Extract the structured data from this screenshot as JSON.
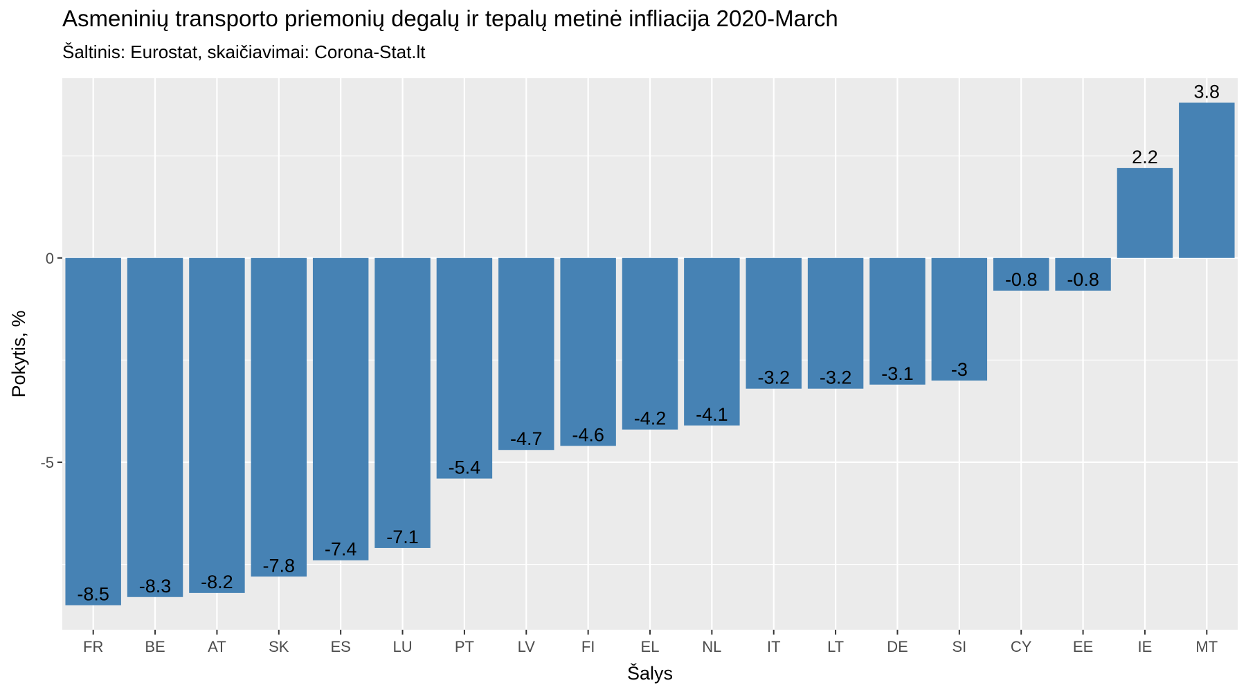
{
  "chart_data": {
    "type": "bar",
    "title": "Asmeninių transporto priemonių degalų ir tepalų metinė infliacija 2020-March",
    "subtitle": "Šaltinis: Eurostat, skaičiavimai: Corona-Stat.lt",
    "xlabel": "Šalys",
    "ylabel": "Pokytis, %",
    "categories": [
      "FR",
      "BE",
      "AT",
      "SK",
      "ES",
      "LU",
      "PT",
      "LV",
      "FI",
      "EL",
      "NL",
      "IT",
      "LT",
      "DE",
      "SI",
      "CY",
      "EE",
      "IE",
      "MT"
    ],
    "values": [
      -8.5,
      -8.3,
      -8.2,
      -7.8,
      -7.4,
      -7.1,
      -5.4,
      -4.7,
      -4.6,
      -4.2,
      -4.1,
      -3.2,
      -3.2,
      -3.1,
      -3,
      -0.8,
      -0.8,
      2.2,
      3.8
    ],
    "value_labels": [
      "-8.5",
      "-8.3",
      "-8.2",
      "-7.8",
      "-7.4",
      "-7.1",
      "-5.4",
      "-4.7",
      "-4.6",
      "-4.2",
      "-4.1",
      "-3.2",
      "-3.2",
      "-3.1",
      "-3",
      "-0.8",
      "-0.8",
      "2.2",
      "3.8"
    ],
    "yticks": [
      0,
      -5
    ],
    "ytick_labels": [
      "0",
      "-5"
    ],
    "ylim": [
      -9.1,
      4.4
    ],
    "grid": true,
    "legend": "none",
    "bar_color": "#4682b4",
    "panel_color": "#ebebeb",
    "grid_color": "#ffffff"
  }
}
